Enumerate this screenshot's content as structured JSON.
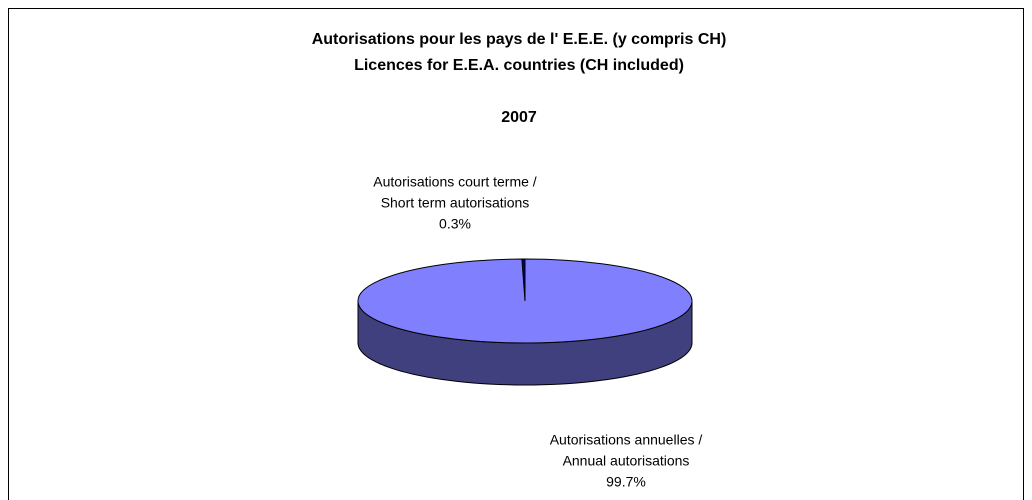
{
  "chart_data": {
    "type": "pie3d",
    "title": [
      "Autorisations pour les pays de l' E.E.E. (y compris CH)",
      "Licences for E.E.A. countries (CH included)"
    ],
    "subtitle": "2007",
    "categories": [
      [
        "Autorisations court terme /",
        "Short term autorisations"
      ],
      [
        "Autorisations annuelles /",
        "Annual autorisations"
      ]
    ],
    "values": [
      0.3,
      99.7
    ],
    "value_labels": [
      "0.3%",
      "99.7%"
    ],
    "colors": [
      "#000080",
      "#8080ff"
    ],
    "side_colors": [
      "#000040",
      "#40407f"
    ]
  }
}
